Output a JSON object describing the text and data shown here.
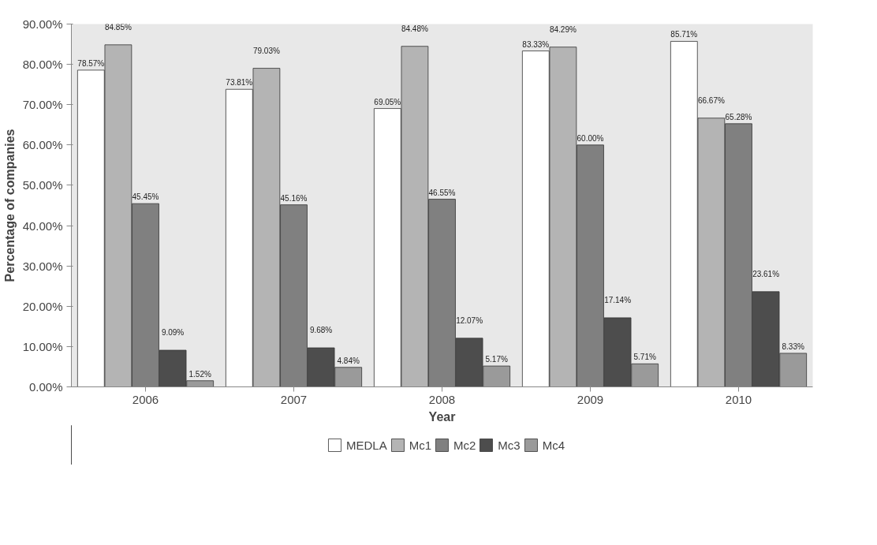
{
  "chart_data": {
    "type": "bar",
    "xlabel": "Year",
    "ylabel": "Percentage of companies",
    "categories": [
      "2006",
      "2007",
      "2008",
      "2009",
      "2010"
    ],
    "series": [
      {
        "name": "MEDLA",
        "color": "#ffffff",
        "values": [
          78.57,
          73.81,
          69.05,
          83.33,
          85.71
        ],
        "value_labels": [
          "78.57%",
          "73.81%",
          "69.05%",
          "83.33%",
          "85.71%"
        ]
      },
      {
        "name": "Mc1",
        "color": "#b4b4b4",
        "values": [
          84.85,
          79.03,
          84.48,
          84.29,
          66.67
        ],
        "value_labels": [
          "84.85%",
          "79.03%",
          "84.48%",
          "84.29%",
          "66.67%"
        ]
      },
      {
        "name": "Mc2",
        "color": "#808080",
        "values": [
          45.45,
          45.16,
          46.55,
          60.0,
          65.28
        ],
        "value_labels": [
          "45.45%",
          "45.16%",
          "46.55%",
          "60.00%",
          "65.28%"
        ]
      },
      {
        "name": "Mc3",
        "color": "#4d4d4d",
        "values": [
          9.09,
          9.68,
          12.07,
          17.14,
          23.61
        ],
        "value_labels": [
          "9.09%",
          "9.68%",
          "12.07%",
          "17.14%",
          "23.61%"
        ]
      },
      {
        "name": "Mc4",
        "color": "#9a9a9a",
        "values": [
          1.52,
          4.84,
          5.17,
          5.71,
          8.33
        ],
        "value_labels": [
          "1.52%",
          "4.84%",
          "5.17%",
          "5.71%",
          "8.33%"
        ]
      }
    ],
    "ylim": [
      0,
      90
    ],
    "yticks": [
      {
        "value": 0,
        "label": "0.00%"
      },
      {
        "value": 10,
        "label": "10.00%"
      },
      {
        "value": 20,
        "label": "20.00%"
      },
      {
        "value": 30,
        "label": "30.00%"
      },
      {
        "value": 40,
        "label": "40.00%"
      },
      {
        "value": 50,
        "label": "50.00%"
      },
      {
        "value": 60,
        "label": "60.00%"
      },
      {
        "value": 70,
        "label": "70.00%"
      },
      {
        "value": 80,
        "label": "80.00%"
      },
      {
        "value": 90,
        "label": "90.00%"
      }
    ],
    "grid": false,
    "legend": "bottom"
  }
}
